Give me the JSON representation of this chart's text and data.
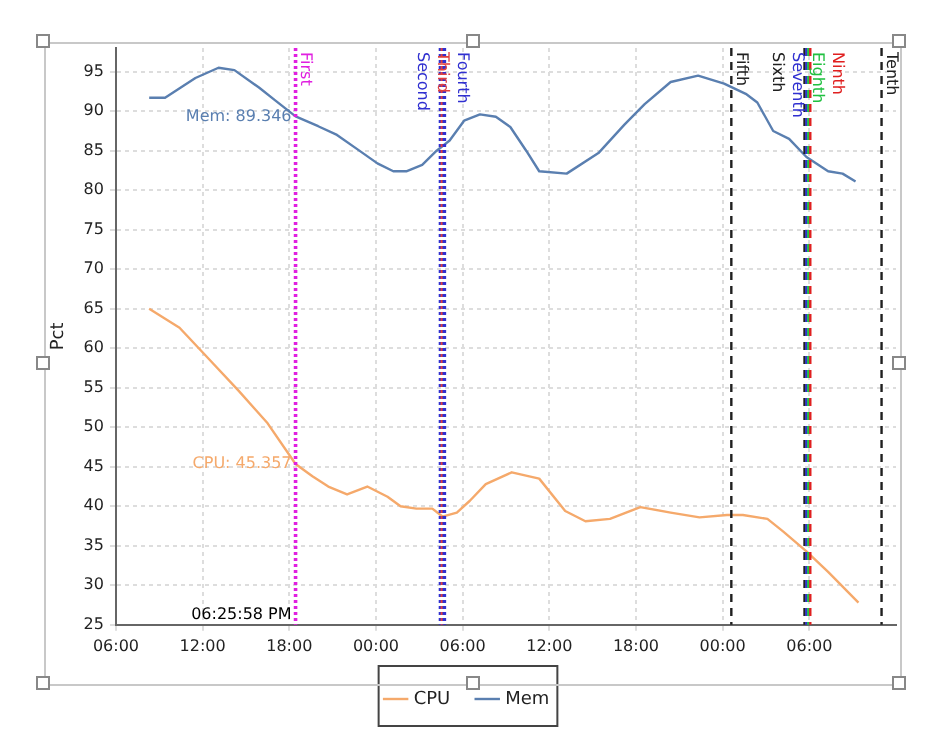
{
  "chart_data": {
    "type": "line",
    "ylabel": "Pct",
    "xlim": [
      "--01-01T06:00",
      "--01-03T12:00"
    ],
    "xticks": [
      {
        "value": "--01-01T06:00",
        "label": "06:00"
      },
      {
        "value": "--01-01T12:00",
        "label": "12:00"
      },
      {
        "value": "--01-01T18:00",
        "label": "18:00"
      },
      {
        "value": "--01-02T00:00",
        "label": "00:00"
      },
      {
        "value": "--01-02T06:00",
        "label": "06:00"
      },
      {
        "value": "--01-02T12:00",
        "label": "12:00"
      },
      {
        "value": "--01-02T18:00",
        "label": "18:00"
      },
      {
        "value": "--01-03T00:00",
        "label": "00:00"
      },
      {
        "value": "--01-03T06:00",
        "label": "06:00"
      }
    ],
    "ylim": [
      25,
      98
    ],
    "yticks": [
      25,
      30,
      35,
      40,
      45,
      50,
      55,
      60,
      65,
      70,
      75,
      80,
      85,
      90,
      95
    ],
    "series": [
      {
        "name": "CPU",
        "color": "#f5a96b",
        "x": [
          "--01-01T08:18",
          "--01-01T10:24",
          "--01-01T12:24",
          "--01-01T14:30",
          "--01-01T16:30",
          "--01-01T18:26",
          "--01-01T19:36",
          "--01-01T20:42",
          "--01-01T22:00",
          "--01-01T23:24",
          "--01-02T00:48",
          "--01-02T01:42",
          "--01-02T02:48",
          "--01-02T03:54",
          "--01-02T04:36",
          "--01-02T05:36",
          "--01-02T06:30",
          "--01-02T07:36",
          "--01-02T09:24",
          "--01-02T11:18",
          "--01-02T13:06",
          "--01-02T14:30",
          "--01-02T16:12",
          "--01-02T18:18",
          "--01-02T20:24",
          "--01-02T22:24",
          "--01-03T00:18",
          "--01-03T01:24",
          "--01-03T03:06",
          "--01-03T04:12",
          "--01-03T05:48",
          "--01-03T07:18",
          "--01-03T09:24"
        ],
        "values": [
          65,
          62.6,
          58.7,
          54.6,
          50.5,
          45.357,
          43.8,
          42.5,
          41.5,
          42.5,
          41.2,
          40,
          39.7,
          39.7,
          38.7,
          39.2,
          40.7,
          42.8,
          44.3,
          43.5,
          39.4,
          38.1,
          38.4,
          39.9,
          39.2,
          38.6,
          38.9,
          38.9,
          38.4,
          36.8,
          34.3,
          31.7,
          27.8
        ]
      },
      {
        "name": "Mem",
        "color": "#5a7fb0",
        "x": [
          "--01-01T08:18",
          "--01-01T09:24",
          "--01-01T11:30",
          "--01-01T13:06",
          "--01-01T14:12",
          "--01-01T15:54",
          "--01-01T17:00",
          "--01-01T18:26",
          "--01-01T20:00",
          "--01-01T21:18",
          "--01-01T22:42",
          "--01-02T00:06",
          "--01-02T01:12",
          "--01-02T02:06",
          "--01-02T03:12",
          "--01-02T04:12",
          "--01-02T05:06",
          "--01-02T06:06",
          "--01-02T07:12",
          "--01-02T08:18",
          "--01-02T09:18",
          "--01-02T10:24",
          "--01-02T11:18",
          "--01-02T13:12",
          "--01-02T15:24",
          "--01-02T17:12",
          "--01-02T18:36",
          "--01-02T20:24",
          "--01-02T22:18",
          "--01-03T00:06",
          "--01-03T01:36",
          "--01-03T02:24",
          "--01-03T03:30",
          "--01-03T04:36",
          "--01-03T05:48",
          "--01-03T07:18",
          "--01-03T08:18",
          "--01-03T09:12"
        ],
        "values": [
          91.7,
          91.7,
          94.2,
          95.5,
          95.2,
          93,
          91.4,
          89.346,
          88.1,
          87,
          85.2,
          83.4,
          82.4,
          82.4,
          83.2,
          85,
          86.3,
          88.8,
          89.6,
          89.3,
          88,
          85,
          82.4,
          82.1,
          84.7,
          88.3,
          90.9,
          93.7,
          94.5,
          93.5,
          92.2,
          91.1,
          87.5,
          86.5,
          84.2,
          82.4,
          82.1,
          81.1
        ]
      }
    ],
    "ref_lines": [
      {
        "axis": "x",
        "value": "--01-01T18:26",
        "label": "First",
        "color": "#e020e0",
        "line_style": "dotted"
      },
      {
        "axis": "x",
        "value": "--01-02T04:28",
        "label": "Second",
        "color": "#3030d0",
        "line_style": "dotted"
      },
      {
        "axis": "x",
        "value": "--01-02T04:36",
        "label": "Third",
        "color": "#e04040",
        "line_style": "dotted"
      },
      {
        "axis": "x",
        "value": "--01-02T04:44",
        "label": "Fourth",
        "color": "#3030d0",
        "line_style": "dotted"
      },
      {
        "axis": "x",
        "value": "--01-03T00:36",
        "label": "Fifth",
        "color": "#202020",
        "line_style": "dashed"
      },
      {
        "axis": "x",
        "value": "--01-03T05:40",
        "label": "Sixth",
        "color": "#202020",
        "line_style": "dashed"
      },
      {
        "axis": "x",
        "value": "--01-03T05:48",
        "label": "Seventh",
        "color": "#3030d0",
        "line_style": "dashed"
      },
      {
        "axis": "x",
        "value": "--01-03T05:56",
        "label": "Eighth",
        "color": "#20c040",
        "line_style": "dashed"
      },
      {
        "axis": "x",
        "value": "--01-03T06:04",
        "label": "Ninth",
        "color": "#e02020",
        "line_style": "dashed"
      },
      {
        "axis": "x",
        "value": "--01-03T11:00",
        "label": "Tenth",
        "color": "#202020",
        "line_style": "dashed"
      }
    ],
    "annotations": [
      {
        "text": "Mem: 89.346",
        "x": "--01-01T18:26",
        "y": 89.346
      },
      {
        "text": "CPU: 45.357",
        "x": "--01-01T18:26",
        "y": 45.357
      },
      {
        "text": "06:25:58 PM",
        "x": "--01-01T18:26",
        "y": 25
      }
    ],
    "grid": true,
    "legend": "bottom",
    "marker": "none",
    "line_style": "solid"
  }
}
